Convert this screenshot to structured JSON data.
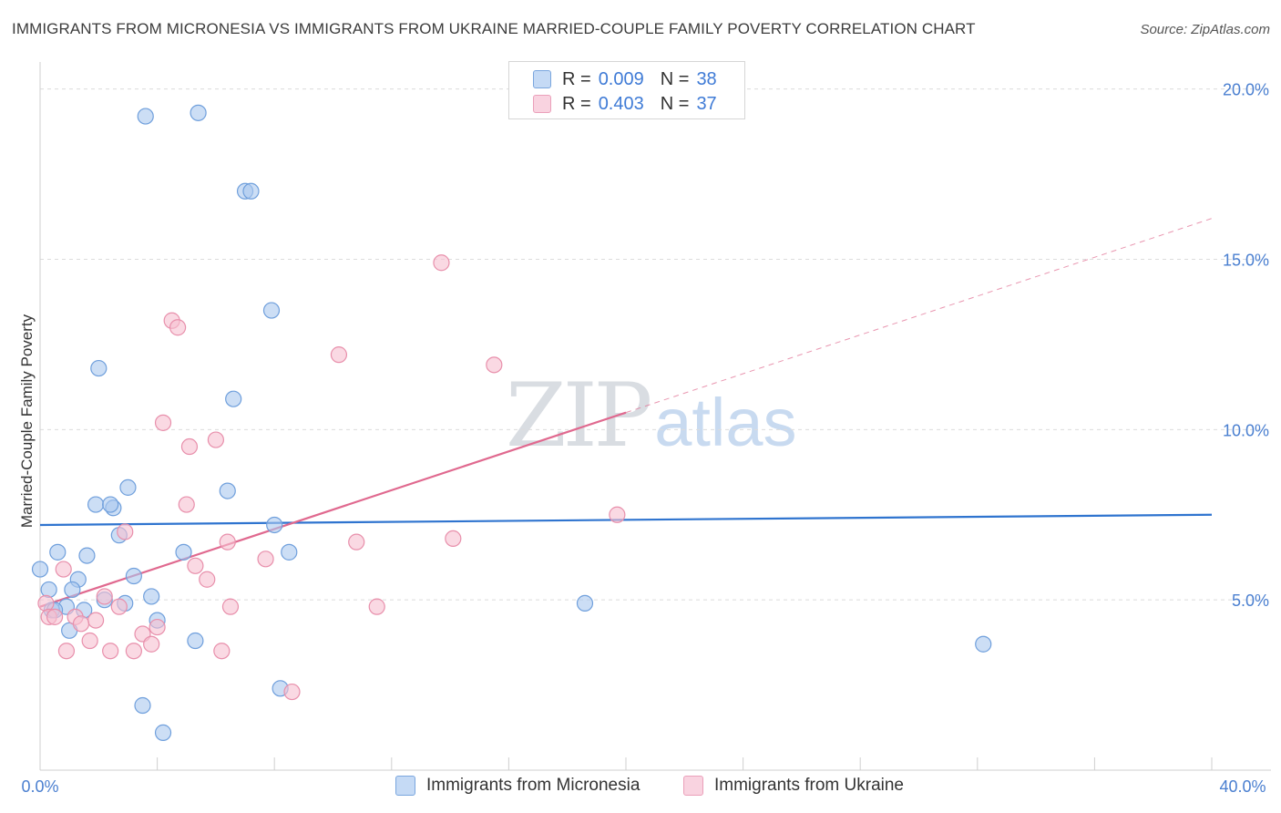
{
  "title": "IMMIGRANTS FROM MICRONESIA VS IMMIGRANTS FROM UKRAINE MARRIED-COUPLE FAMILY POVERTY CORRELATION CHART",
  "source": "Source: ZipAtlas.com",
  "watermark": {
    "zip": "ZIP",
    "atlas": "atlas"
  },
  "legend": {
    "rows": [
      {
        "r_label": "R =",
        "r_value": "0.009",
        "n_label": "N =",
        "n_value": "38"
      },
      {
        "r_label": "R =",
        "r_value": "0.403",
        "n_label": "N =",
        "n_value": "37"
      }
    ]
  },
  "colors": {
    "blue_fill": "#aac8ef",
    "blue_stroke": "#6f9fdc",
    "blue_line": "#2f74cf",
    "pink_fill": "#f6bfd0",
    "pink_stroke": "#e88fab",
    "pink_line": "#e0698f",
    "tick_text": "#4a7fd0",
    "grid": "#dcdcdc"
  },
  "chart_data": {
    "type": "scatter",
    "title": "IMMIGRANTS FROM MICRONESIA VS IMMIGRANTS FROM UKRAINE MARRIED-COUPLE FAMILY POVERTY CORRELATION CHART",
    "xlabel": "",
    "ylabel": "Married-Couple Family Poverty",
    "xlim": [
      0,
      40
    ],
    "ylim": [
      0,
      20.5
    ],
    "x_tick_labels": [
      "0.0%",
      "40.0%"
    ],
    "y_ticks": [
      5,
      10,
      15,
      20
    ],
    "y_tick_labels": [
      "5.0%",
      "10.0%",
      "15.0%",
      "20.0%"
    ],
    "grid": true,
    "legend_position": "top-center",
    "series": [
      {
        "name": "Immigrants from Micronesia",
        "color": "blue",
        "R": 0.009,
        "N": 38,
        "trend": {
          "x": [
            0,
            40
          ],
          "y": [
            7.2,
            7.5
          ],
          "dashed_from": null
        },
        "points": [
          [
            3.6,
            19.2
          ],
          [
            5.4,
            19.3
          ],
          [
            7.0,
            17.0
          ],
          [
            7.2,
            17.0
          ],
          [
            7.9,
            13.5
          ],
          [
            2.0,
            11.8
          ],
          [
            6.6,
            10.9
          ],
          [
            3.0,
            8.3
          ],
          [
            6.4,
            8.2
          ],
          [
            1.9,
            7.8
          ],
          [
            2.5,
            7.7
          ],
          [
            2.4,
            7.8
          ],
          [
            8.0,
            7.2
          ],
          [
            2.7,
            6.9
          ],
          [
            0.6,
            6.4
          ],
          [
            1.6,
            6.3
          ],
          [
            4.9,
            6.4
          ],
          [
            8.5,
            6.4
          ],
          [
            0.0,
            5.9
          ],
          [
            3.2,
            5.7
          ],
          [
            1.3,
            5.6
          ],
          [
            0.3,
            5.3
          ],
          [
            1.1,
            5.3
          ],
          [
            3.8,
            5.1
          ],
          [
            2.2,
            5.0
          ],
          [
            2.9,
            4.9
          ],
          [
            0.9,
            4.8
          ],
          [
            0.4,
            4.7
          ],
          [
            1.5,
            4.7
          ],
          [
            4.0,
            4.4
          ],
          [
            1.0,
            4.1
          ],
          [
            5.3,
            3.8
          ],
          [
            18.6,
            4.9
          ],
          [
            32.2,
            3.7
          ],
          [
            8.2,
            2.4
          ],
          [
            3.5,
            1.9
          ],
          [
            4.2,
            1.1
          ],
          [
            0.5,
            4.7
          ]
        ]
      },
      {
        "name": "Immigrants from Ukraine",
        "color": "pink",
        "R": 0.403,
        "N": 37,
        "trend": {
          "x": [
            0,
            40
          ],
          "y": [
            4.8,
            16.2
          ],
          "dashed_from": 20.0
        },
        "points": [
          [
            13.7,
            14.9
          ],
          [
            4.5,
            13.2
          ],
          [
            4.7,
            13.0
          ],
          [
            10.2,
            12.2
          ],
          [
            15.5,
            11.9
          ],
          [
            4.2,
            10.2
          ],
          [
            6.0,
            9.7
          ],
          [
            5.1,
            9.5
          ],
          [
            5.0,
            7.8
          ],
          [
            19.7,
            7.5
          ],
          [
            2.9,
            7.0
          ],
          [
            6.4,
            6.7
          ],
          [
            10.8,
            6.7
          ],
          [
            14.1,
            6.8
          ],
          [
            7.7,
            6.2
          ],
          [
            5.3,
            6.0
          ],
          [
            0.8,
            5.9
          ],
          [
            5.7,
            5.6
          ],
          [
            2.2,
            5.1
          ],
          [
            0.2,
            4.9
          ],
          [
            2.7,
            4.8
          ],
          [
            6.5,
            4.8
          ],
          [
            11.5,
            4.8
          ],
          [
            1.2,
            4.5
          ],
          [
            0.3,
            4.5
          ],
          [
            0.5,
            4.5
          ],
          [
            1.9,
            4.4
          ],
          [
            1.4,
            4.3
          ],
          [
            3.5,
            4.0
          ],
          [
            4.0,
            4.2
          ],
          [
            1.7,
            3.8
          ],
          [
            3.8,
            3.7
          ],
          [
            0.9,
            3.5
          ],
          [
            2.4,
            3.5
          ],
          [
            3.2,
            3.5
          ],
          [
            6.2,
            3.5
          ],
          [
            8.6,
            2.3
          ]
        ]
      }
    ]
  },
  "bottom_legend": {
    "items": [
      "Immigrants from Micronesia",
      "Immigrants from Ukraine"
    ]
  }
}
